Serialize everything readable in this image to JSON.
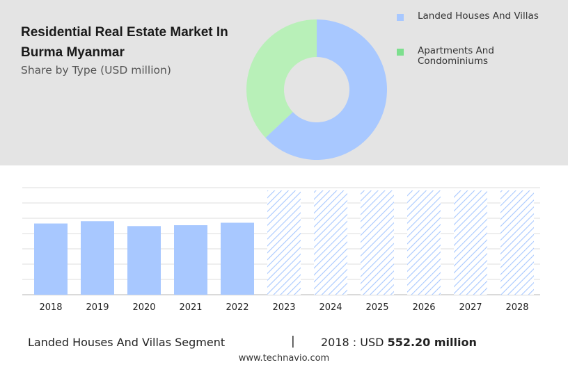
{
  "header": {
    "title": "Residential Real Estate Market In Burma Myanmar",
    "subtitle": "Share by Type (USD million)"
  },
  "legend": [
    {
      "label": "Landed Houses And Villas",
      "color": "#a8c8ff"
    },
    {
      "label": "Apartments And Condominiums",
      "color": "#7ddf8e"
    }
  ],
  "chart_data": [
    {
      "type": "pie",
      "style": "donut",
      "categories": [
        "Landed Houses And Villas",
        "Apartments And Condominiums"
      ],
      "values": [
        63,
        37
      ],
      "colors": [
        "#a8c8ff",
        "#b8f0b8"
      ]
    },
    {
      "type": "bar",
      "categories": [
        "2018",
        "2019",
        "2020",
        "2021",
        "2022",
        "2023",
        "2024",
        "2025",
        "2026",
        "2027",
        "2028"
      ],
      "values": [
        552.2,
        570,
        532,
        539,
        558,
        null,
        null,
        null,
        null,
        null,
        null
      ],
      "forecast_categories": [
        "2023",
        "2024",
        "2025",
        "2026",
        "2027",
        "2028"
      ],
      "ylim": [
        0,
        830
      ],
      "grid": true,
      "bar_color": "#a8c8ff",
      "forecast_color": "#a8c8ff"
    }
  ],
  "footer": {
    "segment": "Landed Houses And Villas Segment",
    "separator": "|",
    "year_label": "2018 : USD ",
    "value": "552.20 million",
    "source": "www.technavio.com"
  }
}
